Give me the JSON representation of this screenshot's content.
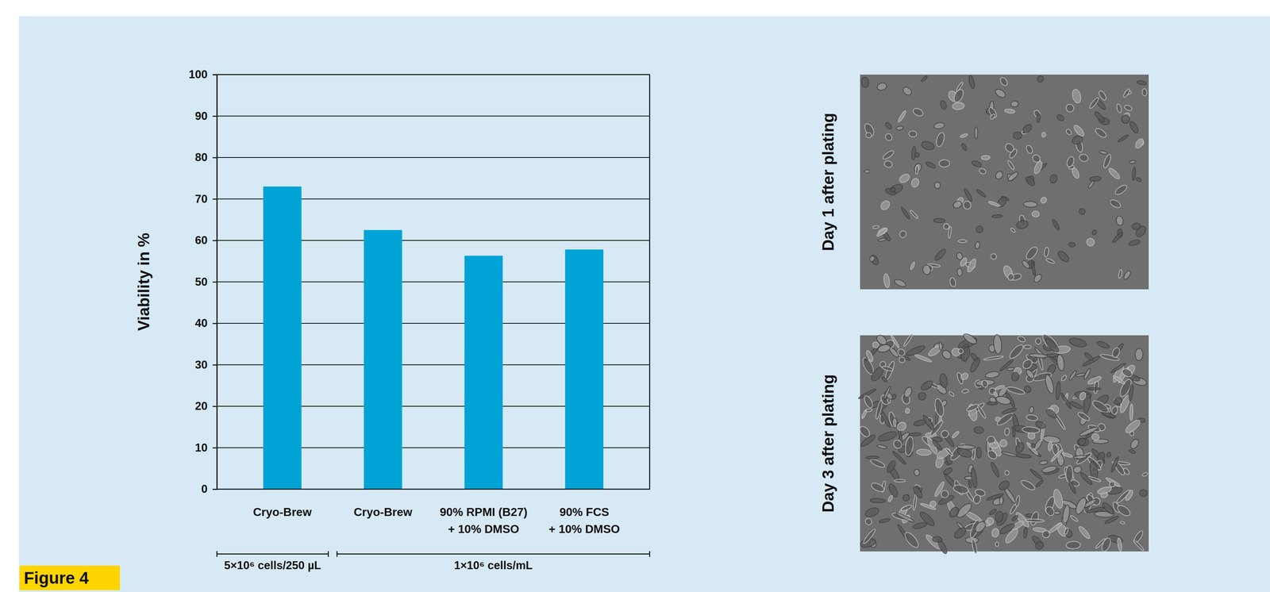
{
  "chart_data": {
    "type": "bar",
    "categories": [
      "Cryo-Brew",
      "Cryo-Brew",
      "90% RPMI (B27)\n+ 10% DMSO",
      "90% FCS\n+ 10% DMSO"
    ],
    "values": [
      73,
      62.5,
      56.3,
      57.8
    ],
    "color": "#00a3d6",
    "ylabel": "Viability in %",
    "ylim": [
      0,
      100
    ],
    "yticks": [
      0,
      10,
      20,
      30,
      40,
      50,
      60,
      70,
      80,
      90,
      100
    ],
    "grid": true,
    "groups": [
      {
        "label": "5×10⁶ cells/250 µL",
        "count": 1
      },
      {
        "label": "1×10⁶ cells/mL",
        "count": 3
      }
    ]
  },
  "figure_label": "Figure 4",
  "images": [
    {
      "label": "Day 1 after plating"
    },
    {
      "label": "Day 3 after plating"
    }
  ]
}
